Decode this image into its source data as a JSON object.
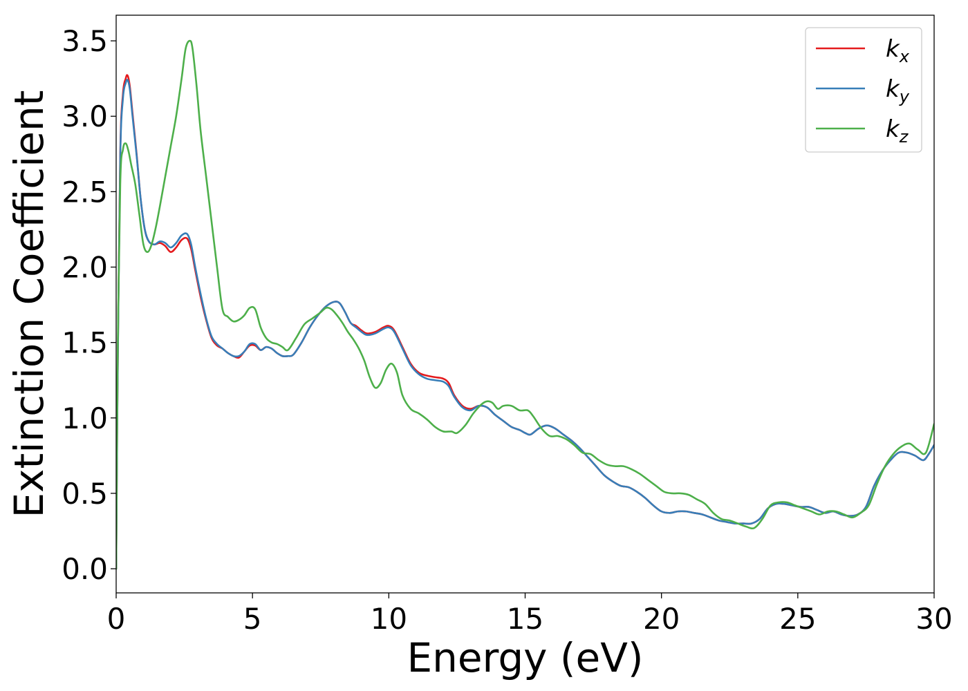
{
  "chart_data": {
    "type": "line",
    "title": "",
    "xlabel": "Energy (eV)",
    "ylabel": "Extinction Coefficient",
    "xlim": [
      0,
      30
    ],
    "ylim": [
      -0.16,
      3.67
    ],
    "xticks": [
      0,
      5,
      10,
      15,
      20,
      25,
      30
    ],
    "xtick_labels": [
      "0",
      "5",
      "10",
      "15",
      "20",
      "25",
      "30"
    ],
    "yticks": [
      0.0,
      0.5,
      1.0,
      1.5,
      2.0,
      2.5,
      3.0,
      3.5
    ],
    "ytick_labels": [
      "0.0",
      "0.5",
      "1.0",
      "1.5",
      "2.0",
      "2.5",
      "3.0",
      "3.5"
    ],
    "grid": false,
    "legend_position": "top-right",
    "series": [
      {
        "name": "k",
        "sub": "x",
        "color": "#e41a1c",
        "x": [
          0,
          0.05,
          0.15,
          0.25,
          0.35,
          0.42,
          0.5,
          0.6,
          0.75,
          0.9,
          1.05,
          1.2,
          1.4,
          1.6,
          1.8,
          2.0,
          2.2,
          2.4,
          2.6,
          2.75,
          2.9,
          3.1,
          3.3,
          3.5,
          3.7,
          3.9,
          4.1,
          4.3,
          4.5,
          4.7,
          4.9,
          5.1,
          5.3,
          5.5,
          5.7,
          5.9,
          6.1,
          6.3,
          6.5,
          6.8,
          7.1,
          7.4,
          7.7,
          8.0,
          8.2,
          8.4,
          8.6,
          8.8,
          9.0,
          9.2,
          9.5,
          9.8,
          10.0,
          10.2,
          10.5,
          10.8,
          11.1,
          11.4,
          11.7,
          12.0,
          12.2,
          12.4,
          12.7,
          13.0,
          13.3,
          13.6,
          13.9,
          14.2,
          14.5,
          14.8,
          15.0,
          15.2,
          15.5,
          15.8,
          16.1,
          16.4,
          16.7,
          17.0,
          17.3,
          17.6,
          17.9,
          18.2,
          18.5,
          18.8,
          19.1,
          19.4,
          19.7,
          20.0,
          20.3,
          20.6,
          20.9,
          21.2,
          21.5,
          21.8,
          22.1,
          22.4,
          22.7,
          23.0,
          23.3,
          23.6,
          23.9,
          24.2,
          24.5,
          24.8,
          25.1,
          25.4,
          25.7,
          26.0,
          26.3,
          26.6,
          26.9,
          27.2,
          27.5,
          27.8,
          28.1,
          28.4,
          28.7,
          29.0,
          29.3,
          29.6,
          29.8,
          30.0
        ],
        "y": [
          0.0,
          1.2,
          2.75,
          3.15,
          3.25,
          3.27,
          3.2,
          3.02,
          2.75,
          2.45,
          2.25,
          2.17,
          2.15,
          2.16,
          2.14,
          2.1,
          2.13,
          2.18,
          2.19,
          2.12,
          1.98,
          1.8,
          1.65,
          1.53,
          1.48,
          1.46,
          1.43,
          1.41,
          1.4,
          1.44,
          1.48,
          1.48,
          1.45,
          1.47,
          1.46,
          1.43,
          1.41,
          1.41,
          1.42,
          1.5,
          1.6,
          1.68,
          1.74,
          1.77,
          1.76,
          1.7,
          1.63,
          1.61,
          1.58,
          1.56,
          1.57,
          1.6,
          1.61,
          1.58,
          1.47,
          1.36,
          1.3,
          1.28,
          1.27,
          1.26,
          1.23,
          1.15,
          1.08,
          1.06,
          1.08,
          1.07,
          1.02,
          0.98,
          0.94,
          0.92,
          0.9,
          0.89,
          0.93,
          0.95,
          0.93,
          0.89,
          0.85,
          0.8,
          0.74,
          0.68,
          0.62,
          0.58,
          0.55,
          0.54,
          0.51,
          0.47,
          0.42,
          0.38,
          0.37,
          0.38,
          0.38,
          0.37,
          0.36,
          0.34,
          0.32,
          0.31,
          0.3,
          0.3,
          0.3,
          0.33,
          0.4,
          0.43,
          0.43,
          0.42,
          0.41,
          0.41,
          0.39,
          0.37,
          0.38,
          0.36,
          0.35,
          0.36,
          0.41,
          0.55,
          0.65,
          0.72,
          0.77,
          0.77,
          0.75,
          0.72,
          0.76,
          0.82
        ]
      },
      {
        "name": "k",
        "sub": "y",
        "color": "#377eb8",
        "x": [
          0,
          0.05,
          0.15,
          0.25,
          0.35,
          0.42,
          0.5,
          0.6,
          0.75,
          0.9,
          1.05,
          1.2,
          1.4,
          1.6,
          1.8,
          2.0,
          2.2,
          2.4,
          2.6,
          2.75,
          2.9,
          3.1,
          3.3,
          3.5,
          3.7,
          3.9,
          4.1,
          4.3,
          4.5,
          4.7,
          4.9,
          5.1,
          5.3,
          5.5,
          5.7,
          5.9,
          6.1,
          6.3,
          6.5,
          6.8,
          7.1,
          7.4,
          7.7,
          8.0,
          8.2,
          8.4,
          8.6,
          8.8,
          9.0,
          9.2,
          9.5,
          9.8,
          10.0,
          10.2,
          10.5,
          10.8,
          11.1,
          11.4,
          11.7,
          12.0,
          12.2,
          12.4,
          12.7,
          13.0,
          13.3,
          13.6,
          13.9,
          14.2,
          14.5,
          14.8,
          15.0,
          15.2,
          15.5,
          15.8,
          16.1,
          16.4,
          16.7,
          17.0,
          17.3,
          17.6,
          17.9,
          18.2,
          18.5,
          18.8,
          19.1,
          19.4,
          19.7,
          20.0,
          20.3,
          20.6,
          20.9,
          21.2,
          21.5,
          21.8,
          22.1,
          22.4,
          22.7,
          23.0,
          23.3,
          23.6,
          23.9,
          24.2,
          24.5,
          24.8,
          25.1,
          25.4,
          25.7,
          26.0,
          26.3,
          26.6,
          26.9,
          27.2,
          27.5,
          27.8,
          28.1,
          28.4,
          28.7,
          29.0,
          29.3,
          29.6,
          29.8,
          30.0
        ],
        "y": [
          0.0,
          1.18,
          2.72,
          3.12,
          3.22,
          3.24,
          3.18,
          3.0,
          2.74,
          2.45,
          2.25,
          2.17,
          2.15,
          2.17,
          2.16,
          2.13,
          2.16,
          2.21,
          2.22,
          2.15,
          2.0,
          1.82,
          1.66,
          1.54,
          1.49,
          1.46,
          1.43,
          1.41,
          1.41,
          1.44,
          1.49,
          1.49,
          1.45,
          1.47,
          1.46,
          1.43,
          1.41,
          1.41,
          1.42,
          1.5,
          1.6,
          1.68,
          1.74,
          1.77,
          1.76,
          1.7,
          1.63,
          1.6,
          1.57,
          1.55,
          1.56,
          1.59,
          1.6,
          1.57,
          1.46,
          1.35,
          1.29,
          1.26,
          1.25,
          1.24,
          1.21,
          1.14,
          1.07,
          1.05,
          1.08,
          1.07,
          1.02,
          0.98,
          0.94,
          0.92,
          0.9,
          0.89,
          0.93,
          0.95,
          0.93,
          0.89,
          0.85,
          0.8,
          0.74,
          0.68,
          0.62,
          0.58,
          0.55,
          0.54,
          0.51,
          0.47,
          0.42,
          0.38,
          0.37,
          0.38,
          0.38,
          0.37,
          0.36,
          0.34,
          0.32,
          0.31,
          0.3,
          0.3,
          0.3,
          0.33,
          0.4,
          0.43,
          0.43,
          0.42,
          0.41,
          0.41,
          0.39,
          0.37,
          0.38,
          0.36,
          0.35,
          0.36,
          0.41,
          0.55,
          0.65,
          0.72,
          0.77,
          0.77,
          0.75,
          0.72,
          0.76,
          0.82
        ]
      },
      {
        "name": "k",
        "sub": "z",
        "color": "#4daf4a",
        "x": [
          0,
          0.05,
          0.15,
          0.25,
          0.35,
          0.45,
          0.55,
          0.7,
          0.85,
          1.0,
          1.15,
          1.3,
          1.45,
          1.6,
          1.8,
          2.0,
          2.2,
          2.4,
          2.55,
          2.7,
          2.8,
          2.95,
          3.1,
          3.3,
          3.5,
          3.7,
          3.9,
          4.1,
          4.3,
          4.5,
          4.7,
          4.9,
          5.1,
          5.3,
          5.5,
          5.7,
          5.9,
          6.1,
          6.3,
          6.6,
          6.9,
          7.2,
          7.5,
          7.7,
          7.9,
          8.1,
          8.3,
          8.5,
          8.7,
          8.9,
          9.1,
          9.3,
          9.5,
          9.7,
          9.9,
          10.1,
          10.3,
          10.5,
          10.8,
          11.1,
          11.4,
          11.7,
          12.0,
          12.3,
          12.5,
          12.8,
          13.1,
          13.4,
          13.6,
          13.8,
          14.0,
          14.2,
          14.5,
          14.8,
          15.1,
          15.3,
          15.6,
          15.9,
          16.2,
          16.5,
          16.8,
          17.1,
          17.4,
          17.7,
          18.0,
          18.3,
          18.6,
          18.9,
          19.2,
          19.5,
          19.8,
          20.1,
          20.4,
          20.7,
          21.0,
          21.3,
          21.6,
          21.9,
          22.2,
          22.5,
          22.8,
          23.1,
          23.4,
          23.7,
          24.0,
          24.3,
          24.6,
          24.9,
          25.2,
          25.5,
          25.8,
          26.1,
          26.4,
          26.7,
          27.0,
          27.3,
          27.6,
          27.9,
          28.2,
          28.5,
          28.8,
          29.1,
          29.4,
          29.7,
          30.0
        ],
        "y": [
          0.0,
          1.3,
          2.55,
          2.78,
          2.82,
          2.77,
          2.68,
          2.55,
          2.35,
          2.15,
          2.1,
          2.15,
          2.26,
          2.4,
          2.6,
          2.8,
          3.0,
          3.25,
          3.45,
          3.5,
          3.45,
          3.2,
          2.9,
          2.6,
          2.3,
          2.0,
          1.72,
          1.67,
          1.64,
          1.65,
          1.68,
          1.73,
          1.72,
          1.6,
          1.53,
          1.5,
          1.49,
          1.47,
          1.45,
          1.53,
          1.62,
          1.66,
          1.7,
          1.73,
          1.72,
          1.68,
          1.63,
          1.57,
          1.52,
          1.46,
          1.38,
          1.27,
          1.2,
          1.23,
          1.32,
          1.36,
          1.3,
          1.15,
          1.06,
          1.03,
          0.99,
          0.94,
          0.91,
          0.91,
          0.9,
          0.95,
          1.03,
          1.09,
          1.11,
          1.1,
          1.06,
          1.08,
          1.08,
          1.05,
          1.05,
          1.01,
          0.93,
          0.88,
          0.88,
          0.86,
          0.82,
          0.77,
          0.76,
          0.72,
          0.69,
          0.68,
          0.68,
          0.66,
          0.63,
          0.59,
          0.55,
          0.51,
          0.5,
          0.5,
          0.49,
          0.46,
          0.43,
          0.37,
          0.33,
          0.32,
          0.3,
          0.28,
          0.27,
          0.33,
          0.42,
          0.44,
          0.44,
          0.42,
          0.4,
          0.38,
          0.36,
          0.38,
          0.38,
          0.36,
          0.34,
          0.37,
          0.42,
          0.56,
          0.68,
          0.76,
          0.81,
          0.83,
          0.79,
          0.77,
          0.96
        ]
      }
    ]
  }
}
